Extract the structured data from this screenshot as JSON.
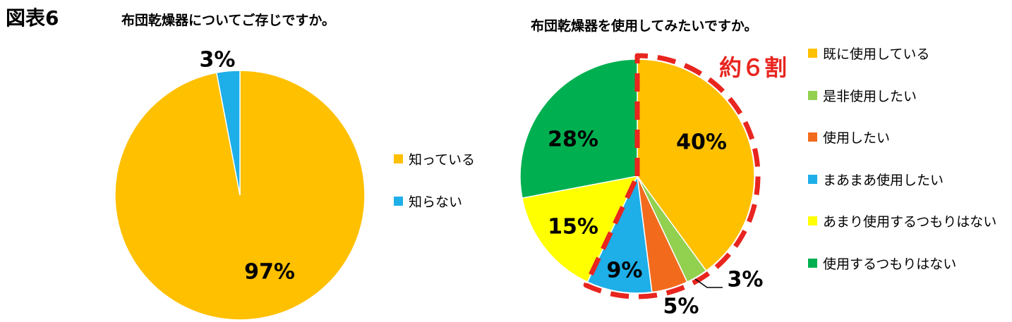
{
  "figure_label": "図表6",
  "chart_data": [
    {
      "type": "pie",
      "title": "布団乾燥器についてご存じですか。",
      "categories": [
        "知っている",
        "知らない"
      ],
      "values": [
        97,
        3
      ],
      "value_labels": [
        "97%",
        "3%"
      ],
      "colors": [
        "#FFC000",
        "#1EAEE8"
      ],
      "legend_position": "right"
    },
    {
      "type": "pie",
      "title": "布団乾燥器を使用してみたいですか。",
      "categories": [
        "既に使用している",
        "是非使用したい",
        "使用したい",
        "まあまあ使用したい",
        "あまり使用するつもりはない",
        "使用するつもりはない"
      ],
      "values": [
        40,
        3,
        5,
        9,
        15,
        28
      ],
      "value_labels": [
        "40%",
        "3%",
        "5%",
        "9%",
        "15%",
        "28%"
      ],
      "colors": [
        "#FFC000",
        "#92D050",
        "#F26B1D",
        "#1EAEE8",
        "#FFFF00",
        "#00B050"
      ],
      "legend_position": "right",
      "annotation": "約６割",
      "annotation_color": "#E8251F"
    }
  ]
}
